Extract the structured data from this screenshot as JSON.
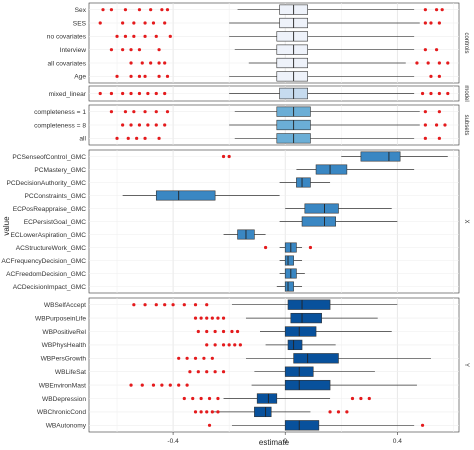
{
  "chart_data": {
    "type": "boxplot",
    "xlabel": "estimate",
    "ylabel": "value",
    "x_ticks": [
      -0.4,
      0.0,
      0.4
    ],
    "x_tick_labels": [
      "-0.4",
      "0",
      "0.4"
    ],
    "xlim": [
      -0.7,
      0.62
    ],
    "grid": true,
    "outlier_color": "#e41a1c",
    "panels": [
      {
        "strip": "controls",
        "fill": "#eef2fa",
        "rows": [
          {
            "label": "Sex",
            "whisker": [
              -0.17,
              0.46
            ],
            "q1": -0.02,
            "median": 0.03,
            "q3": 0.08,
            "outliers": [
              -0.65,
              -0.62,
              -0.57,
              -0.52,
              -0.48,
              -0.44,
              -0.42,
              0.5,
              0.54,
              0.56
            ]
          },
          {
            "label": "SES",
            "whisker": [
              -0.2,
              0.48
            ],
            "q1": -0.02,
            "median": 0.03,
            "q3": 0.08,
            "outliers": [
              -0.66,
              -0.58,
              -0.54,
              -0.5,
              -0.47,
              -0.43,
              0.5,
              0.52,
              0.55
            ]
          },
          {
            "label": "no covariates",
            "whisker": [
              -0.2,
              0.46
            ],
            "q1": -0.03,
            "median": 0.03,
            "q3": 0.08,
            "outliers": [
              -0.6,
              -0.57,
              -0.54,
              -0.5,
              -0.46,
              -0.41
            ]
          },
          {
            "label": "Interview",
            "whisker": [
              -0.18,
              0.46
            ],
            "q1": -0.03,
            "median": 0.03,
            "q3": 0.08,
            "outliers": [
              -0.62,
              -0.58,
              -0.55,
              -0.52,
              -0.45,
              0.5,
              0.54
            ]
          },
          {
            "label": "all covariates",
            "whisker": [
              -0.13,
              0.43
            ],
            "q1": -0.03,
            "median": 0.03,
            "q3": 0.08,
            "outliers": [
              -0.55,
              -0.51,
              -0.48,
              -0.45,
              -0.43,
              0.47,
              0.51,
              0.55,
              0.58
            ]
          },
          {
            "label": "Age",
            "whisker": [
              -0.2,
              0.46
            ],
            "q1": -0.03,
            "median": 0.03,
            "q3": 0.08,
            "outliers": [
              -0.6,
              -0.55,
              -0.52,
              -0.5,
              -0.45,
              -0.42,
              0.52,
              0.55
            ]
          }
        ]
      },
      {
        "strip": "model",
        "fill": "#c6dbef",
        "rows": [
          {
            "label": "mixed_linear",
            "whisker": [
              -0.2,
              0.46
            ],
            "q1": -0.02,
            "median": 0.03,
            "q3": 0.08,
            "outliers": [
              -0.66,
              -0.62,
              -0.58,
              -0.55,
              -0.52,
              -0.49,
              -0.46,
              -0.43,
              0.49,
              0.52,
              0.55,
              0.58
            ]
          }
        ]
      },
      {
        "strip": "subsets",
        "fill": "#6baed6",
        "rows": [
          {
            "label": "completeness = 1",
            "whisker": [
              -0.18,
              0.48
            ],
            "q1": -0.03,
            "median": 0.03,
            "q3": 0.09,
            "outliers": [
              -0.62,
              -0.57,
              -0.54,
              -0.5,
              -0.46,
              -0.42,
              0.5,
              0.55
            ]
          },
          {
            "label": "completeness = 8",
            "whisker": [
              -0.2,
              0.48
            ],
            "q1": -0.03,
            "median": 0.03,
            "q3": 0.09,
            "outliers": [
              -0.58,
              -0.55,
              -0.52,
              -0.49,
              -0.46,
              -0.43,
              0.5,
              0.54,
              0.57
            ]
          },
          {
            "label": "all",
            "whisker": [
              -0.18,
              0.46
            ],
            "q1": -0.03,
            "median": 0.03,
            "q3": 0.09,
            "outliers": [
              -0.6,
              -0.56,
              -0.53,
              -0.5,
              -0.45,
              0.5,
              0.55
            ]
          }
        ]
      },
      {
        "strip": "X",
        "fill": "#3a87c3",
        "rows": [
          {
            "label": "PCSenseofControl_GMC",
            "whisker": [
              0.2,
              0.58
            ],
            "q1": 0.27,
            "median": 0.37,
            "q3": 0.41,
            "outliers": [
              -0.22,
              -0.2
            ]
          },
          {
            "label": "PCMastery_GMC",
            "whisker": [
              0.04,
              0.46
            ],
            "q1": 0.11,
            "median": 0.16,
            "q3": 0.22,
            "outliers": []
          },
          {
            "label": "PCDecisionAuthority_GMC",
            "whisker": [
              -0.02,
              0.16
            ],
            "q1": 0.04,
            "median": 0.06,
            "q3": 0.09,
            "outliers": []
          },
          {
            "label": "PCConstraints_GMC",
            "whisker": [
              -0.58,
              -0.02
            ],
            "q1": -0.46,
            "median": -0.38,
            "q3": -0.25,
            "outliers": []
          },
          {
            "label": "ECPosReappraise_GMC",
            "whisker": [
              0.0,
              0.38
            ],
            "q1": 0.07,
            "median": 0.14,
            "q3": 0.19,
            "outliers": []
          },
          {
            "label": "ECPersistGoal_GMC",
            "whisker": [
              -0.02,
              0.4
            ],
            "q1": 0.06,
            "median": 0.14,
            "q3": 0.18,
            "outliers": []
          },
          {
            "label": "ECLowerAspiration_GMC",
            "whisker": [
              -0.22,
              -0.07
            ],
            "q1": -0.17,
            "median": -0.14,
            "q3": -0.11,
            "outliers": []
          },
          {
            "label": "ACStructureWork_GMC",
            "whisker": [
              -0.02,
              0.06
            ],
            "q1": 0.0,
            "median": 0.02,
            "q3": 0.04,
            "outliers": [
              -0.07,
              0.09
            ]
          },
          {
            "label": "ACFrequencyDecision_GMC",
            "whisker": [
              -0.02,
              0.06
            ],
            "q1": 0.0,
            "median": 0.01,
            "q3": 0.03,
            "outliers": []
          },
          {
            "label": "ACFreedomDecision_GMC",
            "whisker": [
              -0.02,
              0.07
            ],
            "q1": 0.0,
            "median": 0.02,
            "q3": 0.04,
            "outliers": []
          },
          {
            "label": "ACDecisionImpact_GMC",
            "whisker": [
              -0.03,
              0.06
            ],
            "q1": 0.0,
            "median": 0.01,
            "q3": 0.03,
            "outliers": []
          }
        ]
      },
      {
        "strip": "Y",
        "fill": "#08519c",
        "rows": [
          {
            "label": "WBSelfAccept",
            "whisker": [
              -0.19,
              0.4
            ],
            "q1": 0.01,
            "median": 0.06,
            "q3": 0.16,
            "outliers": [
              -0.54,
              -0.5,
              -0.46,
              -0.43,
              -0.4,
              -0.36,
              -0.32,
              -0.28
            ]
          },
          {
            "label": "WBPurposeinLife",
            "whisker": [
              -0.14,
              0.33
            ],
            "q1": 0.02,
            "median": 0.06,
            "q3": 0.13,
            "outliers": [
              -0.32,
              -0.3,
              -0.28,
              -0.26,
              -0.24,
              -0.22
            ]
          },
          {
            "label": "WBPositiveRel",
            "whisker": [
              -0.09,
              0.38
            ],
            "q1": 0.0,
            "median": 0.05,
            "q3": 0.11,
            "outliers": [
              -0.31,
              -0.28,
              -0.25,
              -0.22,
              -0.19,
              -0.17
            ]
          },
          {
            "label": "WBPhysHealth",
            "whisker": [
              -0.07,
              0.18
            ],
            "q1": 0.01,
            "median": 0.03,
            "q3": 0.06,
            "outliers": [
              -0.28,
              -0.25,
              -0.22,
              -0.2,
              -0.18,
              -0.16
            ]
          },
          {
            "label": "WBPersGrowth",
            "whisker": [
              -0.14,
              0.52
            ],
            "q1": 0.03,
            "median": 0.08,
            "q3": 0.19,
            "outliers": [
              -0.38,
              -0.35,
              -0.32,
              -0.29,
              -0.26
            ]
          },
          {
            "label": "WBLifeSat",
            "whisker": [
              -0.11,
              0.32
            ],
            "q1": 0.0,
            "median": 0.05,
            "q3": 0.1,
            "outliers": [
              -0.34,
              -0.31,
              -0.28,
              -0.25,
              -0.22
            ]
          },
          {
            "label": "WBEnvironMast",
            "whisker": [
              -0.12,
              0.47
            ],
            "q1": 0.0,
            "median": 0.05,
            "q3": 0.16,
            "outliers": [
              -0.55,
              -0.51,
              -0.47,
              -0.44,
              -0.41,
              -0.38,
              -0.35
            ]
          },
          {
            "label": "WBDepression",
            "whisker": [
              -0.22,
              0.16
            ],
            "q1": -0.1,
            "median": -0.06,
            "q3": -0.03,
            "outliers": [
              -0.36,
              -0.33,
              -0.3,
              -0.27,
              -0.24,
              0.24,
              0.27,
              0.3
            ]
          },
          {
            "label": "WBChronicCond",
            "whisker": [
              -0.26,
              0.09
            ],
            "q1": -0.11,
            "median": -0.07,
            "q3": -0.05,
            "outliers": [
              -0.32,
              -0.3,
              -0.28,
              -0.26,
              -0.24,
              0.16,
              0.19,
              0.22
            ]
          },
          {
            "label": "WBAutonomy",
            "whisker": [
              -0.19,
              0.46
            ],
            "q1": 0.0,
            "median": 0.05,
            "q3": 0.12,
            "outliers": [
              -0.27,
              0.49
            ]
          }
        ]
      }
    ]
  }
}
